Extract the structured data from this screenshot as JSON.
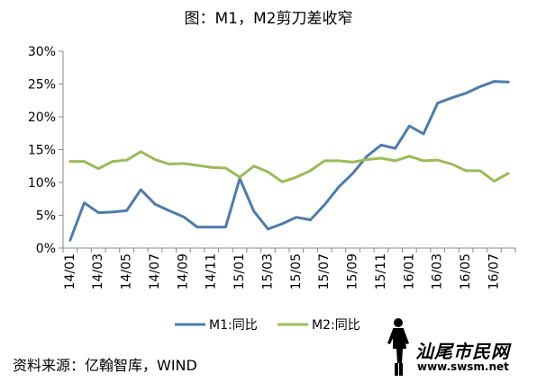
{
  "chart_data": {
    "type": "line",
    "title": "图：M1，M2剪刀差收窄",
    "xlabel": "",
    "ylabel": "",
    "x": [
      "14/01",
      "14/02",
      "14/03",
      "14/04",
      "14/05",
      "14/06",
      "14/07",
      "14/08",
      "14/09",
      "14/10",
      "14/11",
      "14/12",
      "15/01",
      "15/02",
      "15/03",
      "15/04",
      "15/05",
      "15/06",
      "15/07",
      "15/08",
      "15/09",
      "15/10",
      "15/11",
      "15/12",
      "16/01",
      "16/02",
      "16/03",
      "16/04",
      "16/05",
      "16/06",
      "16/07",
      "16/08"
    ],
    "x_tick_labels": [
      "14/01",
      "14/03",
      "14/05",
      "14/07",
      "14/09",
      "14/11",
      "15/01",
      "15/03",
      "15/05",
      "15/07",
      "15/09",
      "15/11",
      "16/01",
      "16/03",
      "16/05",
      "16/07"
    ],
    "ylim": [
      0,
      30
    ],
    "y_ticks": [
      0,
      5,
      10,
      15,
      20,
      25,
      30
    ],
    "y_tick_labels": [
      "0%",
      "5%",
      "10%",
      "15%",
      "20%",
      "25%",
      "30%"
    ],
    "grid": false,
    "legend_position": "bottom",
    "series": [
      {
        "name": "M1:同比",
        "color": "#4F7BAC",
        "values": [
          1.2,
          6.9,
          5.4,
          5.5,
          5.7,
          8.9,
          6.7,
          5.7,
          4.8,
          3.2,
          3.2,
          3.2,
          10.6,
          5.6,
          2.9,
          3.7,
          4.7,
          4.3,
          6.6,
          9.3,
          11.4,
          14.0,
          15.7,
          15.2,
          18.6,
          17.4,
          22.1,
          22.9,
          23.6,
          24.6,
          25.4,
          25.3
        ]
      },
      {
        "name": "M2:同比",
        "color": "#9BBB59",
        "values": [
          13.2,
          13.2,
          12.1,
          13.2,
          13.4,
          14.7,
          13.5,
          12.8,
          12.9,
          12.6,
          12.3,
          12.2,
          10.8,
          12.5,
          11.6,
          10.1,
          10.8,
          11.8,
          13.3,
          13.3,
          13.1,
          13.5,
          13.7,
          13.3,
          14.0,
          13.3,
          13.4,
          12.8,
          11.8,
          11.8,
          10.2,
          11.4
        ]
      }
    ]
  },
  "source": "资料来源：亿翰智库，WIND",
  "watermark": {
    "text": "汕尾市民网",
    "url": "www.swsm.net"
  }
}
